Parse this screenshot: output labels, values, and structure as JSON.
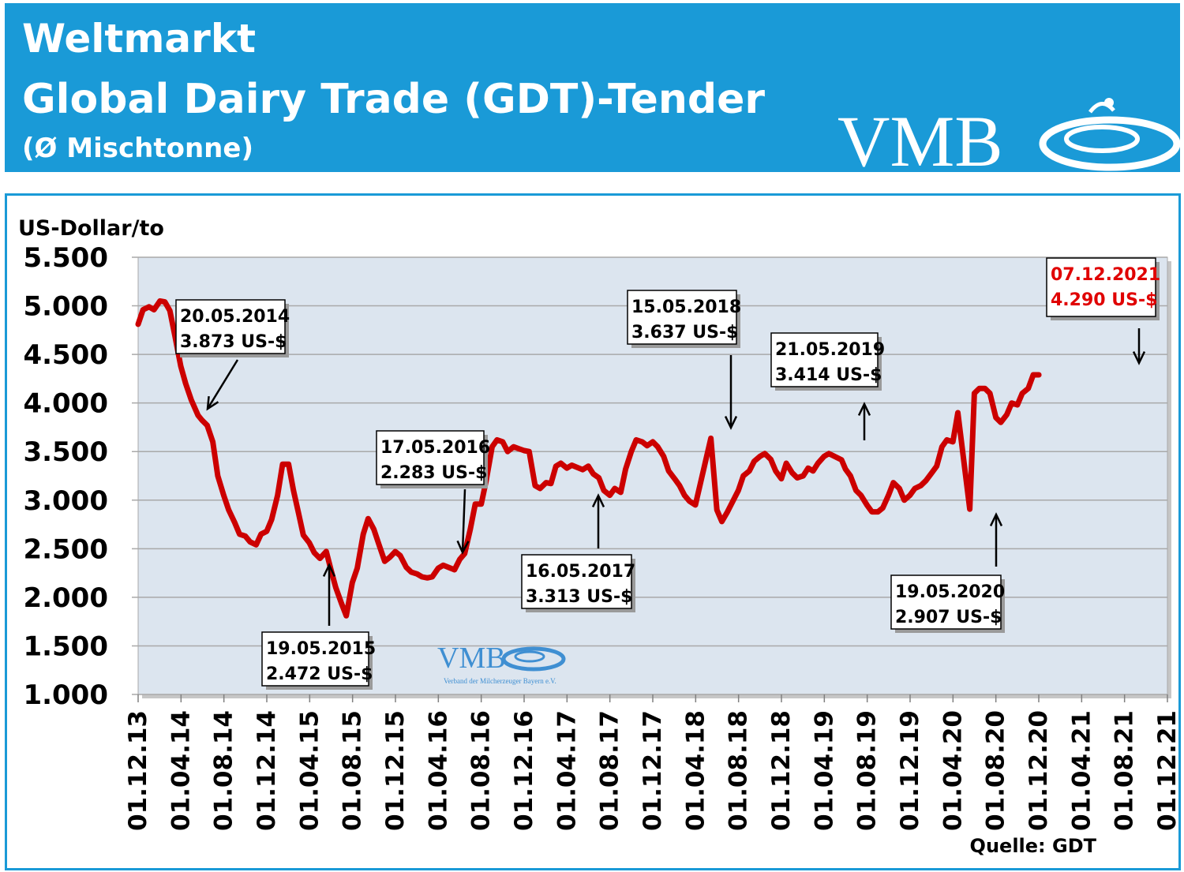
{
  "header": {
    "title_line1": "Weltmarkt",
    "title_line2": "Global Dairy Trade (GDT)-Tender",
    "title_line3": "(Ø Mischtonne)",
    "logo_text": "VMB",
    "background_color": "#1a9ad7"
  },
  "chart_data": {
    "type": "line",
    "title": "Global Dairy Trade (GDT)-Tender",
    "ylabel": "US-Dollar/to",
    "ylim": [
      1000,
      5500
    ],
    "y_ticks": [
      1000,
      1500,
      2000,
      2500,
      3000,
      3500,
      4000,
      4500,
      5000,
      5500
    ],
    "y_tick_labels": [
      "1.000",
      "1.500",
      "2.000",
      "2.500",
      "3.000",
      "3.500",
      "4.000",
      "4.500",
      "5.000",
      "5.500"
    ],
    "x_tick_labels": [
      "01.12.13",
      "01.04.14",
      "01.08.14",
      "01.12.14",
      "01.04.15",
      "01.08.15",
      "01.12.15",
      "01.04.16",
      "01.08.16",
      "01.12.16",
      "01.04.17",
      "01.08.17",
      "01.12.17",
      "01.04.18",
      "01.08.18",
      "01.12.18",
      "01.04.19",
      "01.08.19",
      "01.12.19",
      "01.04.20",
      "01.08.20",
      "01.12.20",
      "01.04.21",
      "01.08.21",
      "01.12.21"
    ],
    "x_range": [
      "2013-12-01",
      "2021-12-01"
    ],
    "grid": true,
    "line_color": "#cc0000",
    "plot_background": "#dce5ef",
    "series": [
      {
        "points": [
          [
            "2013-12-01",
            4810
          ],
          [
            "2013-12-15",
            4960
          ],
          [
            "2014-01-01",
            4990
          ],
          [
            "2014-01-15",
            4960
          ],
          [
            "2014-02-01",
            5050
          ],
          [
            "2014-02-15",
            5040
          ],
          [
            "2014-03-01",
            4950
          ],
          [
            "2014-03-15",
            4700
          ],
          [
            "2014-04-01",
            4380
          ],
          [
            "2014-04-15",
            4200
          ],
          [
            "2014-05-01",
            4030
          ],
          [
            "2014-05-20",
            3873
          ],
          [
            "2014-06-01",
            3820
          ],
          [
            "2014-06-15",
            3770
          ],
          [
            "2014-07-01",
            3600
          ],
          [
            "2014-07-15",
            3250
          ],
          [
            "2014-08-01",
            3050
          ],
          [
            "2014-08-15",
            2900
          ],
          [
            "2014-09-01",
            2770
          ],
          [
            "2014-09-15",
            2650
          ],
          [
            "2014-10-01",
            2630
          ],
          [
            "2014-10-15",
            2570
          ],
          [
            "2014-11-01",
            2540
          ],
          [
            "2014-11-15",
            2650
          ],
          [
            "2014-12-01",
            2680
          ],
          [
            "2014-12-15",
            2800
          ],
          [
            "2015-01-01",
            3050
          ],
          [
            "2015-01-15",
            3370
          ],
          [
            "2015-02-01",
            3370
          ],
          [
            "2015-02-15",
            3100
          ],
          [
            "2015-03-01",
            2870
          ],
          [
            "2015-03-15",
            2640
          ],
          [
            "2015-04-01",
            2560
          ],
          [
            "2015-04-15",
            2460
          ],
          [
            "2015-05-01",
            2400
          ],
          [
            "2015-05-19",
            2472
          ],
          [
            "2015-06-01",
            2290
          ],
          [
            "2015-06-15",
            2100
          ],
          [
            "2015-07-01",
            1940
          ],
          [
            "2015-07-15",
            1810
          ],
          [
            "2015-08-01",
            2150
          ],
          [
            "2015-08-15",
            2300
          ],
          [
            "2015-09-01",
            2650
          ],
          [
            "2015-09-15",
            2810
          ],
          [
            "2015-10-01",
            2700
          ],
          [
            "2015-10-15",
            2550
          ],
          [
            "2015-11-01",
            2370
          ],
          [
            "2015-11-15",
            2410
          ],
          [
            "2015-12-01",
            2470
          ],
          [
            "2015-12-15",
            2430
          ],
          [
            "2016-01-01",
            2310
          ],
          [
            "2016-01-15",
            2260
          ],
          [
            "2016-02-01",
            2240
          ],
          [
            "2016-02-15",
            2210
          ],
          [
            "2016-03-01",
            2200
          ],
          [
            "2016-03-15",
            2210
          ],
          [
            "2016-04-01",
            2300
          ],
          [
            "2016-04-15",
            2330
          ],
          [
            "2016-05-17",
            2283
          ],
          [
            "2016-06-01",
            2390
          ],
          [
            "2016-06-15",
            2450
          ],
          [
            "2016-07-01",
            2700
          ],
          [
            "2016-07-15",
            2960
          ],
          [
            "2016-08-01",
            2960
          ],
          [
            "2016-08-15",
            3200
          ],
          [
            "2016-09-01",
            3550
          ],
          [
            "2016-09-15",
            3620
          ],
          [
            "2016-10-01",
            3600
          ],
          [
            "2016-10-15",
            3500
          ],
          [
            "2016-11-01",
            3550
          ],
          [
            "2016-11-15",
            3530
          ],
          [
            "2016-12-01",
            3510
          ],
          [
            "2016-12-15",
            3500
          ],
          [
            "2017-01-01",
            3150
          ],
          [
            "2017-01-15",
            3120
          ],
          [
            "2017-02-01",
            3180
          ],
          [
            "2017-02-15",
            3170
          ],
          [
            "2017-03-01",
            3350
          ],
          [
            "2017-03-15",
            3380
          ],
          [
            "2017-04-01",
            3330
          ],
          [
            "2017-04-15",
            3360
          ],
          [
            "2017-05-16",
            3313
          ],
          [
            "2017-06-01",
            3350
          ],
          [
            "2017-06-15",
            3270
          ],
          [
            "2017-07-01",
            3230
          ],
          [
            "2017-07-15",
            3100
          ],
          [
            "2017-08-01",
            3050
          ],
          [
            "2017-08-15",
            3120
          ],
          [
            "2017-09-01",
            3080
          ],
          [
            "2017-09-15",
            3320
          ],
          [
            "2017-10-01",
            3500
          ],
          [
            "2017-10-15",
            3620
          ],
          [
            "2017-11-01",
            3600
          ],
          [
            "2017-11-15",
            3560
          ],
          [
            "2017-12-01",
            3600
          ],
          [
            "2017-12-15",
            3550
          ],
          [
            "2018-01-01",
            3450
          ],
          [
            "2018-01-15",
            3300
          ],
          [
            "2018-02-01",
            3220
          ],
          [
            "2018-02-15",
            3150
          ],
          [
            "2018-03-01",
            3050
          ],
          [
            "2018-03-15",
            2990
          ],
          [
            "2018-04-01",
            2950
          ],
          [
            "2018-05-15",
            3637
          ],
          [
            "2018-06-01",
            2900
          ],
          [
            "2018-06-15",
            2780
          ],
          [
            "2018-07-01",
            2880
          ],
          [
            "2018-07-15",
            2980
          ],
          [
            "2018-08-01",
            3100
          ],
          [
            "2018-08-15",
            3250
          ],
          [
            "2018-09-01",
            3300
          ],
          [
            "2018-09-15",
            3400
          ],
          [
            "2018-10-01",
            3450
          ],
          [
            "2018-10-15",
            3480
          ],
          [
            "2018-11-01",
            3420
          ],
          [
            "2018-11-15",
            3300
          ],
          [
            "2018-12-01",
            3220
          ],
          [
            "2018-12-15",
            3380
          ],
          [
            "2019-01-01",
            3280
          ],
          [
            "2019-01-15",
            3230
          ],
          [
            "2019-02-01",
            3250
          ],
          [
            "2019-02-15",
            3330
          ],
          [
            "2019-03-01",
            3300
          ],
          [
            "2019-03-15",
            3380
          ],
          [
            "2019-04-01",
            3450
          ],
          [
            "2019-04-15",
            3480
          ],
          [
            "2019-05-21",
            3414
          ],
          [
            "2019-06-01",
            3320
          ],
          [
            "2019-06-15",
            3250
          ],
          [
            "2019-07-01",
            3100
          ],
          [
            "2019-07-15",
            3050
          ],
          [
            "2019-08-01",
            2950
          ],
          [
            "2019-08-15",
            2880
          ],
          [
            "2019-09-01",
            2880
          ],
          [
            "2019-09-15",
            2920
          ],
          [
            "2019-10-01",
            3050
          ],
          [
            "2019-10-15",
            3180
          ],
          [
            "2019-11-01",
            3120
          ],
          [
            "2019-11-15",
            3000
          ],
          [
            "2019-12-01",
            3050
          ],
          [
            "2019-12-15",
            3120
          ],
          [
            "2020-01-01",
            3150
          ],
          [
            "2020-01-15",
            3200
          ],
          [
            "2020-02-01",
            3280
          ],
          [
            "2020-02-15",
            3350
          ],
          [
            "2020-03-01",
            3550
          ],
          [
            "2020-03-15",
            3620
          ],
          [
            "2020-04-01",
            3600
          ],
          [
            "2020-04-15",
            3900
          ],
          [
            "2020-05-19",
            2907
          ],
          [
            "2020-06-01",
            4100
          ],
          [
            "2020-06-15",
            4150
          ],
          [
            "2020-07-01",
            4150
          ],
          [
            "2020-07-15",
            4100
          ],
          [
            "2020-08-01",
            3850
          ],
          [
            "2020-08-15",
            3800
          ],
          [
            "2020-09-01",
            3880
          ],
          [
            "2020-09-15",
            4000
          ],
          [
            "2020-10-01",
            3980
          ],
          [
            "2020-10-15",
            4100
          ],
          [
            "2020-11-01",
            4150
          ],
          [
            "2020-11-15",
            4290
          ],
          [
            "2020-12-01",
            4290
          ]
        ]
      }
    ],
    "annotations": [
      {
        "date_label": "20.05.2014",
        "value_label": "3.873 US-$",
        "highlight": false
      },
      {
        "date_label": "19.05.2015",
        "value_label": "2.472 US-$",
        "highlight": false
      },
      {
        "date_label": "17.05.2016",
        "value_label": "2.283 US-$",
        "highlight": false
      },
      {
        "date_label": "16.05.2017",
        "value_label": "3.313 US-$",
        "highlight": false
      },
      {
        "date_label": "15.05.2018",
        "value_label": "3.637 US-$",
        "highlight": false
      },
      {
        "date_label": "21.05.2019",
        "value_label": "3.414 US-$",
        "highlight": false
      },
      {
        "date_label": "19.05.2020",
        "value_label": "2.907 US-$",
        "highlight": false
      },
      {
        "date_label": "07.12.2021",
        "value_label": "4.290 US-$",
        "highlight": true
      }
    ],
    "source": "Quelle: GDT",
    "watermark_text": "VMB",
    "watermark_subtext": "Verband der Milcherzeuger Bayern e.V."
  }
}
